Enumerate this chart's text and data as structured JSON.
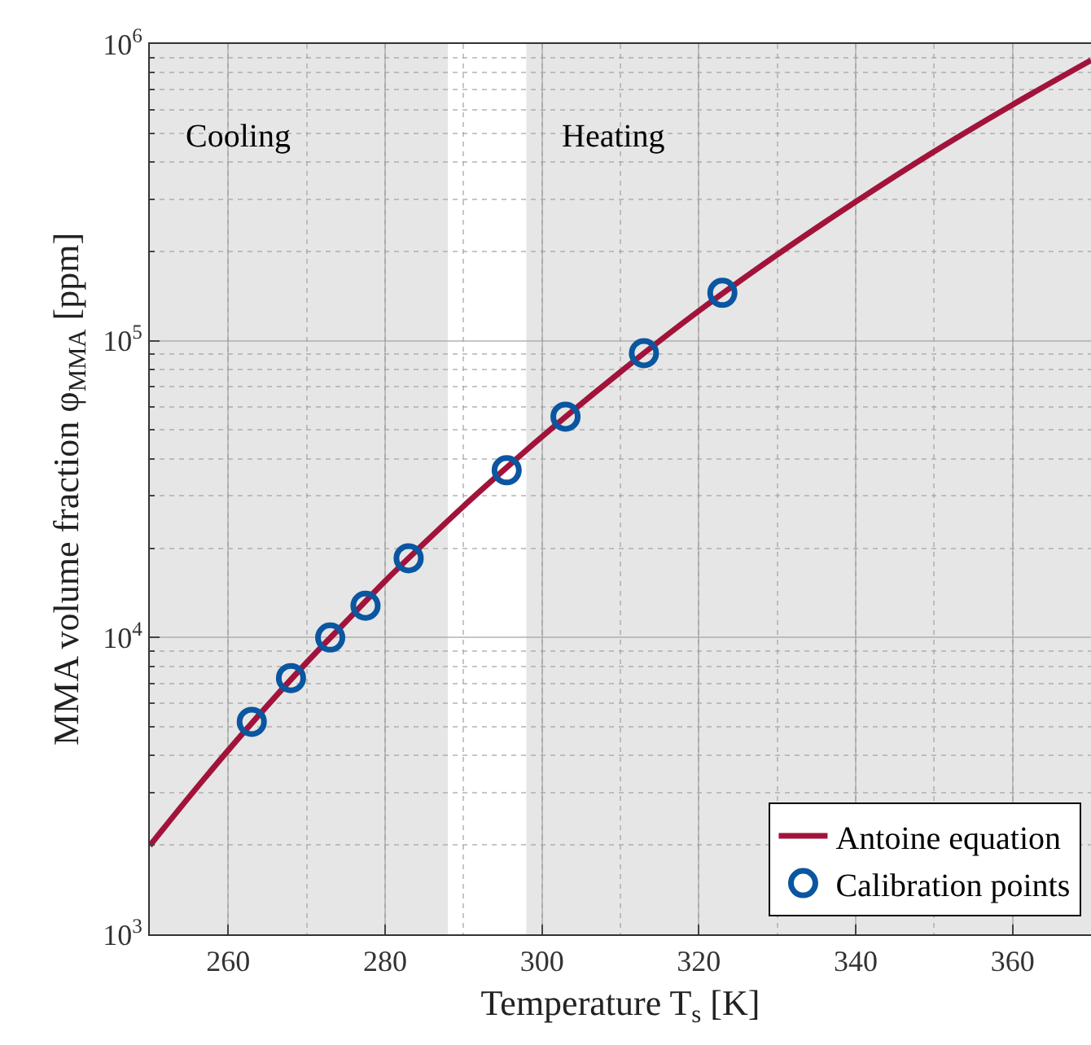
{
  "chart_data": {
    "type": "line",
    "xlabel": "Temperature T$_{s}$ [K]",
    "ylabel": "MMA volume fraction φ$_{MMA}$ [ppm]",
    "series": [
      {
        "name": "Antoine equation",
        "color": "#a2133b",
        "marker": "none",
        "x": [
          250,
          255,
          260,
          265,
          270,
          275,
          280,
          285,
          290,
          295,
          300,
          310,
          320,
          330,
          340,
          350,
          360,
          370
        ],
        "values": [
          1990,
          2900,
          4170,
          5900,
          8240,
          11300,
          15500,
          20800,
          27700,
          36400,
          47500,
          78500,
          126000,
          195000,
          294000,
          434000,
          624000,
          881000
        ]
      },
      {
        "name": "Calibration points",
        "type": "scatter",
        "color": "#0a56a0",
        "marker": "circle",
        "x": [
          263,
          268,
          273,
          277.5,
          283,
          295.5,
          303,
          313,
          323
        ],
        "values": [
          5200,
          7300,
          10000,
          12800,
          18500,
          36600,
          55500,
          90800,
          145000
        ]
      }
    ],
    "xlim": [
      250,
      370
    ],
    "xticks": [
      260,
      280,
      300,
      320,
      340,
      360
    ],
    "ylim": [
      1000,
      1000000
    ],
    "yticks": [
      {
        "value": 1000,
        "label": "10$^{3}$"
      },
      {
        "value": 10000,
        "label": "10$^{4}$"
      },
      {
        "value": 100000,
        "label": "10$^{5}$"
      },
      {
        "value": 1000000,
        "label": "10$^{6}$"
      }
    ],
    "log": "y",
    "grid": true,
    "legend": "bottom right",
    "bands": [
      {
        "axis": "x",
        "from": 250,
        "to": 288,
        "label": "Cooling",
        "color": "#e6e6e6"
      },
      {
        "axis": "x",
        "from": 298,
        "to": 370,
        "label": "Heating",
        "color": "#e6e6e6"
      }
    ]
  }
}
